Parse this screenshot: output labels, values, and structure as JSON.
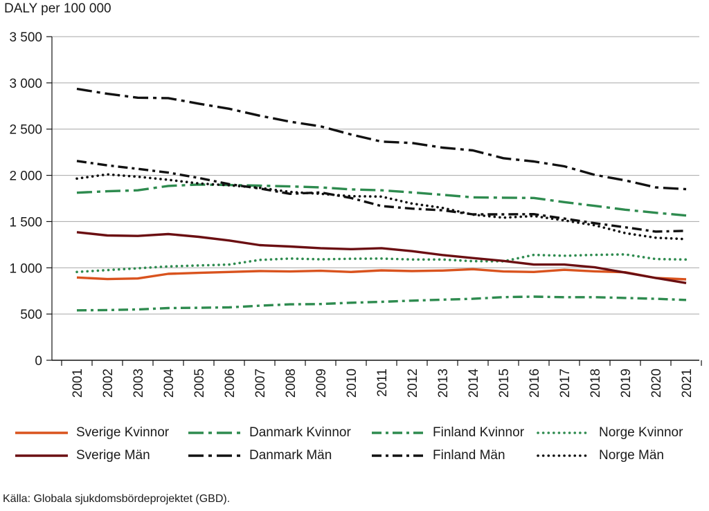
{
  "chart_data": {
    "type": "line",
    "ylabel": "DALY per 100 000",
    "ylim": [
      0,
      3500
    ],
    "yticks": [
      0,
      500,
      1000,
      1500,
      2000,
      2500,
      3000,
      3500
    ],
    "ytick_labels": [
      "0",
      "500",
      "1 000",
      "1 500",
      "2 000",
      "2 500",
      "3 000",
      "3 500"
    ],
    "categories": [
      "2001",
      "2002",
      "2003",
      "2004",
      "2005",
      "2006",
      "2007",
      "2008",
      "2009",
      "2010",
      "2011",
      "2012",
      "2013",
      "2014",
      "2015",
      "2016",
      "2017",
      "2018",
      "2019",
      "2020",
      "2021"
    ],
    "series": [
      {
        "name": "Sverige Kvinnor",
        "color": "#d9531e",
        "dash": "solid",
        "values": [
          895,
          878,
          885,
          935,
          945,
          955,
          965,
          960,
          968,
          955,
          972,
          965,
          970,
          985,
          960,
          955,
          978,
          962,
          952,
          890,
          875
        ]
      },
      {
        "name": "Danmark Kvinnor",
        "color": "#2e8b4f",
        "dash": "dashdot-long",
        "values": [
          1812,
          1828,
          1838,
          1885,
          1900,
          1895,
          1888,
          1880,
          1870,
          1848,
          1838,
          1815,
          1790,
          1762,
          1758,
          1755,
          1710,
          1670,
          1628,
          1595,
          1565
        ]
      },
      {
        "name": "Finland Kvinnor",
        "color": "#2e8b4f",
        "dash": "dashdot",
        "values": [
          540,
          543,
          550,
          565,
          568,
          572,
          590,
          605,
          608,
          622,
          632,
          645,
          655,
          665,
          683,
          688,
          682,
          682,
          674,
          665,
          652
        ]
      },
      {
        "name": "Norge Kvinnor",
        "color": "#2e8b4f",
        "dash": "dotted",
        "values": [
          955,
          975,
          995,
          1015,
          1025,
          1035,
          1085,
          1100,
          1092,
          1098,
          1100,
          1090,
          1090,
          1072,
          1070,
          1140,
          1130,
          1140,
          1145,
          1095,
          1090
        ]
      },
      {
        "name": "Sverige Män",
        "color": "#6b0f12",
        "dash": "solid",
        "values": [
          1385,
          1350,
          1345,
          1365,
          1335,
          1295,
          1245,
          1230,
          1212,
          1202,
          1212,
          1180,
          1138,
          1105,
          1075,
          1035,
          1035,
          1005,
          948,
          890,
          835
        ]
      },
      {
        "name": "Danmark Män",
        "color": "#111111",
        "dash": "dashdot-long",
        "values": [
          2935,
          2882,
          2840,
          2835,
          2775,
          2720,
          2645,
          2580,
          2530,
          2442,
          2365,
          2350,
          2300,
          2270,
          2185,
          2150,
          2098,
          2005,
          1945,
          1870,
          1850
        ]
      },
      {
        "name": "Finland Män",
        "color": "#111111",
        "dash": "dashdot",
        "values": [
          2155,
          2108,
          2070,
          2030,
          1972,
          1905,
          1858,
          1800,
          1815,
          1755,
          1668,
          1640,
          1622,
          1578,
          1578,
          1580,
          1532,
          1482,
          1438,
          1392,
          1400
        ]
      },
      {
        "name": "Norge Män",
        "color": "#111111",
        "dash": "dotted",
        "values": [
          1965,
          2010,
          1985,
          1952,
          1912,
          1892,
          1865,
          1820,
          1800,
          1775,
          1770,
          1695,
          1648,
          1575,
          1542,
          1560,
          1512,
          1460,
          1375,
          1325,
          1310
        ]
      }
    ]
  },
  "legend": {
    "items": [
      "Sverige Kvinnor",
      "Danmark Kvinnor",
      "Finland Kvinnor",
      "Norge Kvinnor",
      "Sverige Män",
      "Danmark Män",
      "Finland Män",
      "Norge Män"
    ]
  },
  "source": "Källa: Globala sjukdomsbördeprojektet (GBD)."
}
